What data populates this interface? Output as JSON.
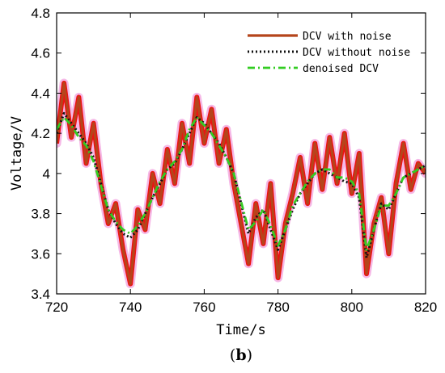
{
  "chart_data": {
    "type": "line",
    "xlabel": "Time/s",
    "ylabel": "Voltage/V",
    "xlim": [
      720,
      820
    ],
    "ylim": [
      3.4,
      4.8
    ],
    "xticks": [
      "720",
      "740",
      "760",
      "780",
      "800",
      "820"
    ],
    "xtick_values": [
      720,
      740,
      760,
      780,
      800,
      820
    ],
    "yticks": [
      "3.4",
      "3.6",
      "3.8",
      "4",
      "4.2",
      "4.4",
      "4.6",
      "4.8"
    ],
    "ytick_values": [
      3.4,
      3.6,
      3.8,
      4.0,
      4.2,
      4.4,
      4.6,
      4.8
    ],
    "grid": false,
    "legend_position": "top-right",
    "x": [
      720,
      722,
      724,
      726,
      728,
      730,
      732,
      734,
      736,
      738,
      740,
      742,
      744,
      746,
      748,
      750,
      752,
      754,
      756,
      758,
      760,
      762,
      764,
      766,
      768,
      770,
      772,
      774,
      776,
      778,
      780,
      782,
      784,
      786,
      788,
      790,
      792,
      794,
      796,
      798,
      800,
      802,
      804,
      806,
      808,
      810,
      812,
      814,
      816,
      818,
      820
    ],
    "series": [
      {
        "name": "DCV with noise",
        "color": "#b5451b",
        "style": "solid",
        "values": [
          4.15,
          4.45,
          4.18,
          4.38,
          4.05,
          4.25,
          3.95,
          3.75,
          3.85,
          3.62,
          3.45,
          3.82,
          3.72,
          4.0,
          3.85,
          4.12,
          3.95,
          4.25,
          4.05,
          4.38,
          4.15,
          4.32,
          4.05,
          4.22,
          3.95,
          3.75,
          3.55,
          3.85,
          3.65,
          3.95,
          3.48,
          3.75,
          3.9,
          4.08,
          3.85,
          4.15,
          3.92,
          4.18,
          3.95,
          4.2,
          3.9,
          4.1,
          3.5,
          3.75,
          3.88,
          3.6,
          3.95,
          4.15,
          3.92,
          4.05,
          4.0
        ]
      },
      {
        "name": "DCV without noise",
        "color": "#111111",
        "style": "dotted",
        "values": [
          4.2,
          4.3,
          4.25,
          4.2,
          4.15,
          4.08,
          3.95,
          3.82,
          3.75,
          3.7,
          3.68,
          3.72,
          3.8,
          3.88,
          3.95,
          4.02,
          4.05,
          4.12,
          4.2,
          4.28,
          4.25,
          4.2,
          4.15,
          4.08,
          4.0,
          3.85,
          3.7,
          3.78,
          3.82,
          3.72,
          3.62,
          3.72,
          3.82,
          3.9,
          3.95,
          4.0,
          4.02,
          4.0,
          3.98,
          3.96,
          3.95,
          3.88,
          3.58,
          3.72,
          3.85,
          3.82,
          3.9,
          3.98,
          4.0,
          4.02,
          4.04
        ]
      },
      {
        "name": "denoised DCV",
        "color": "#33cc22",
        "style": "dash-dot",
        "values": [
          4.22,
          4.28,
          4.24,
          4.18,
          4.14,
          4.06,
          3.94,
          3.82,
          3.76,
          3.72,
          3.7,
          3.74,
          3.8,
          3.88,
          3.96,
          4.02,
          4.06,
          4.12,
          4.22,
          4.28,
          4.24,
          4.2,
          4.14,
          4.08,
          4.0,
          3.86,
          3.72,
          3.76,
          3.82,
          3.74,
          3.64,
          3.72,
          3.84,
          3.9,
          3.96,
          4.0,
          4.02,
          4.02,
          3.98,
          3.98,
          3.96,
          3.9,
          3.62,
          3.72,
          3.84,
          3.84,
          3.9,
          3.98,
          4.0,
          4.02,
          4.04
        ]
      }
    ]
  },
  "caption": {
    "open": "(",
    "letter": "b",
    "close": ")"
  }
}
